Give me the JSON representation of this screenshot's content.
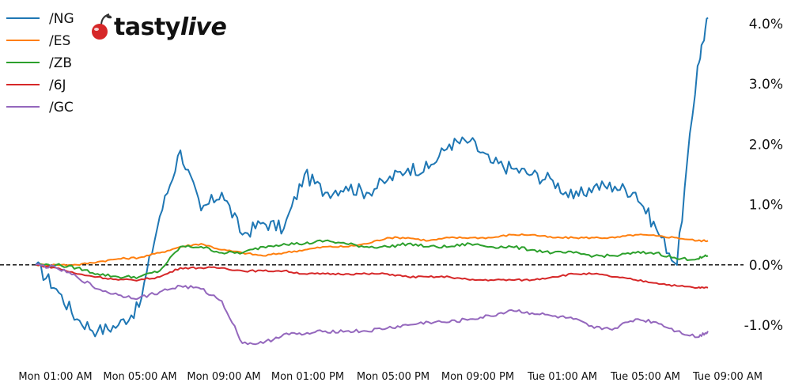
{
  "brand": {
    "name_plain": "tasty",
    "name_italic": "live",
    "cherry_color": "#d62728"
  },
  "chart_data": {
    "type": "line",
    "title": "",
    "xlabel": "",
    "ylabel": "",
    "x_ticks": [
      "Mon 01:00 AM",
      "Mon 05:00 AM",
      "Mon 09:00 AM",
      "Mon 01:00 PM",
      "Mon 05:00 PM",
      "Mon 09:00 PM",
      "Tue 01:00 AM",
      "Tue 05:00 AM",
      "Tue 09:00 AM"
    ],
    "y_ticks": [
      "4.0%",
      "3.0%",
      "2.0%",
      "1.0%",
      "0.0%",
      "-1.0%"
    ],
    "y_tick_values": [
      4.0,
      3.0,
      2.0,
      1.0,
      0.0,
      -1.0
    ],
    "ylim": [
      -1.5,
      4.2
    ],
    "y_axis_side": "right",
    "reference_line": {
      "y": 0.0,
      "style": "dashed",
      "color": "#000000"
    },
    "legend_position": "top-left",
    "x_hours": [
      0,
      1,
      2,
      3,
      4,
      5,
      6,
      7,
      8,
      9,
      10,
      11,
      12,
      13,
      14,
      15,
      16,
      17,
      18,
      19,
      20,
      21,
      22,
      23,
      24,
      25,
      26,
      27,
      28,
      29,
      30,
      31,
      32,
      32.5
    ],
    "series": [
      {
        "name": "/NG",
        "color": "#1f77b4",
        "values": [
          0.0,
          -0.4,
          -0.9,
          -1.1,
          -1.0,
          -0.7,
          0.8,
          1.9,
          0.9,
          1.2,
          0.5,
          0.7,
          0.6,
          1.5,
          1.2,
          1.3,
          1.2,
          1.4,
          1.6,
          1.6,
          2.0,
          2.05,
          1.7,
          1.6,
          1.5,
          1.4,
          1.1,
          1.3,
          1.3,
          1.2,
          0.6,
          0.0,
          3.3,
          4.1
        ]
      },
      {
        "name": "/ES",
        "color": "#ff7f0e",
        "values": [
          0.0,
          0.0,
          0.0,
          0.05,
          0.1,
          0.12,
          0.2,
          0.3,
          0.35,
          0.25,
          0.2,
          0.15,
          0.2,
          0.25,
          0.3,
          0.3,
          0.35,
          0.45,
          0.45,
          0.4,
          0.45,
          0.45,
          0.45,
          0.5,
          0.5,
          0.45,
          0.45,
          0.45,
          0.45,
          0.5,
          0.48,
          0.45,
          0.4,
          0.4
        ]
      },
      {
        "name": "/ZB",
        "color": "#2ca02c",
        "values": [
          0.0,
          0.0,
          -0.05,
          -0.15,
          -0.2,
          -0.2,
          -0.1,
          0.3,
          0.3,
          0.2,
          0.2,
          0.3,
          0.35,
          0.35,
          0.4,
          0.35,
          0.3,
          0.3,
          0.35,
          0.3,
          0.3,
          0.35,
          0.3,
          0.3,
          0.25,
          0.2,
          0.2,
          0.15,
          0.15,
          0.2,
          0.2,
          0.1,
          0.1,
          0.15
        ]
      },
      {
        "name": "/6J",
        "color": "#d62728",
        "values": [
          0.0,
          -0.05,
          -0.15,
          -0.2,
          -0.25,
          -0.25,
          -0.2,
          -0.05,
          -0.05,
          -0.05,
          -0.1,
          -0.1,
          -0.1,
          -0.15,
          -0.15,
          -0.15,
          -0.15,
          -0.15,
          -0.2,
          -0.2,
          -0.2,
          -0.25,
          -0.25,
          -0.25,
          -0.25,
          -0.2,
          -0.15,
          -0.15,
          -0.2,
          -0.25,
          -0.3,
          -0.35,
          -0.38,
          -0.38
        ]
      },
      {
        "name": "/GC",
        "color": "#9467bd",
        "values": [
          0.0,
          -0.05,
          -0.2,
          -0.4,
          -0.5,
          -0.55,
          -0.45,
          -0.35,
          -0.4,
          -0.6,
          -1.3,
          -1.3,
          -1.15,
          -1.15,
          -1.1,
          -1.1,
          -1.1,
          -1.05,
          -1.0,
          -0.95,
          -0.95,
          -0.9,
          -0.85,
          -0.75,
          -0.8,
          -0.85,
          -0.9,
          -1.05,
          -1.05,
          -0.9,
          -0.95,
          -1.1,
          -1.2,
          -1.1
        ]
      }
    ]
  }
}
